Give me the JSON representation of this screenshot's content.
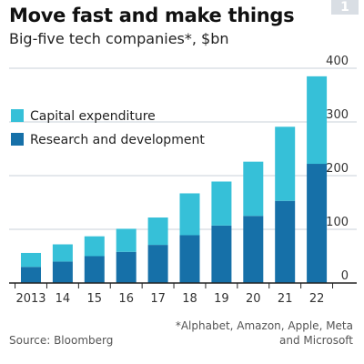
{
  "header": {
    "title": "Move fast and make things",
    "subtitle": "Big-five tech companies*, $bn",
    "badge": "1"
  },
  "footer": {
    "source": "Source: Bloomberg",
    "footnote": "*Alphabet, Amazon, Apple, Meta and Microsoft"
  },
  "colors": {
    "capex": "#36c0d8",
    "rnd": "#1670a8",
    "grid": "#c8d2da",
    "axis": "#222222",
    "text": "#333333"
  },
  "chart_data": {
    "type": "bar",
    "stacked": true,
    "title": "Move fast and make things",
    "subtitle": "Big-five tech companies*, $bn",
    "categories": [
      "2013",
      "14",
      "15",
      "16",
      "17",
      "18",
      "19",
      "20",
      "21",
      "22"
    ],
    "series": [
      {
        "name": "Research and development",
        "color": "#1670a8",
        "values": [
          30,
          40,
          50,
          58,
          71,
          89,
          107,
          125,
          153,
          222
        ]
      },
      {
        "name": "Capital expenditure",
        "color": "#36c0d8",
        "values": [
          26,
          32,
          37,
          43,
          51,
          78,
          82,
          101,
          138,
          163
        ]
      }
    ],
    "legend_order": [
      "Capital expenditure",
      "Research and development"
    ],
    "legend_position": "top-left",
    "ylim": [
      0,
      400
    ],
    "yticks": [
      0,
      100,
      200,
      300,
      400
    ],
    "y_axis_side": "right",
    "grid": true
  }
}
